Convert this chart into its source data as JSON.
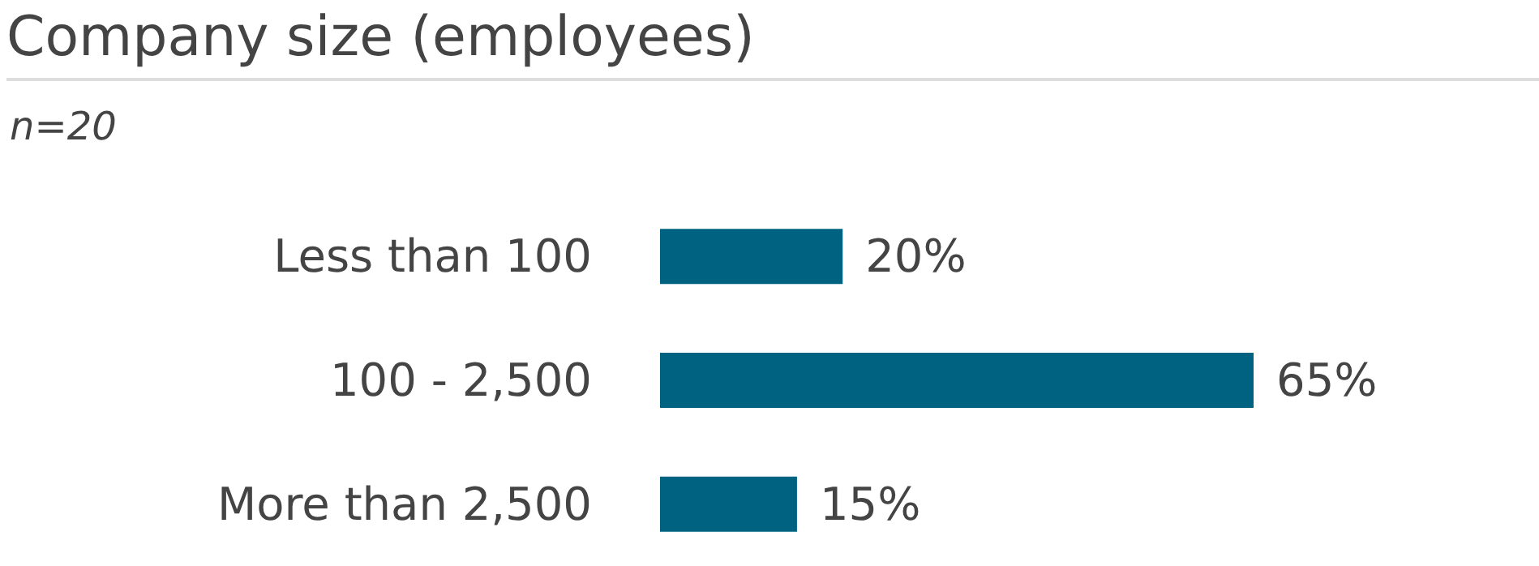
{
  "chart_data": {
    "type": "bar",
    "orientation": "horizontal",
    "title": "Company size (employees)",
    "subtitle": "n=20",
    "categories": [
      "Less than 100",
      "100 - 2,500",
      "More than 2,500"
    ],
    "values": [
      20,
      65,
      15
    ],
    "color": "#006281",
    "value_labels": [
      "20%",
      "65%",
      "15%"
    ]
  }
}
